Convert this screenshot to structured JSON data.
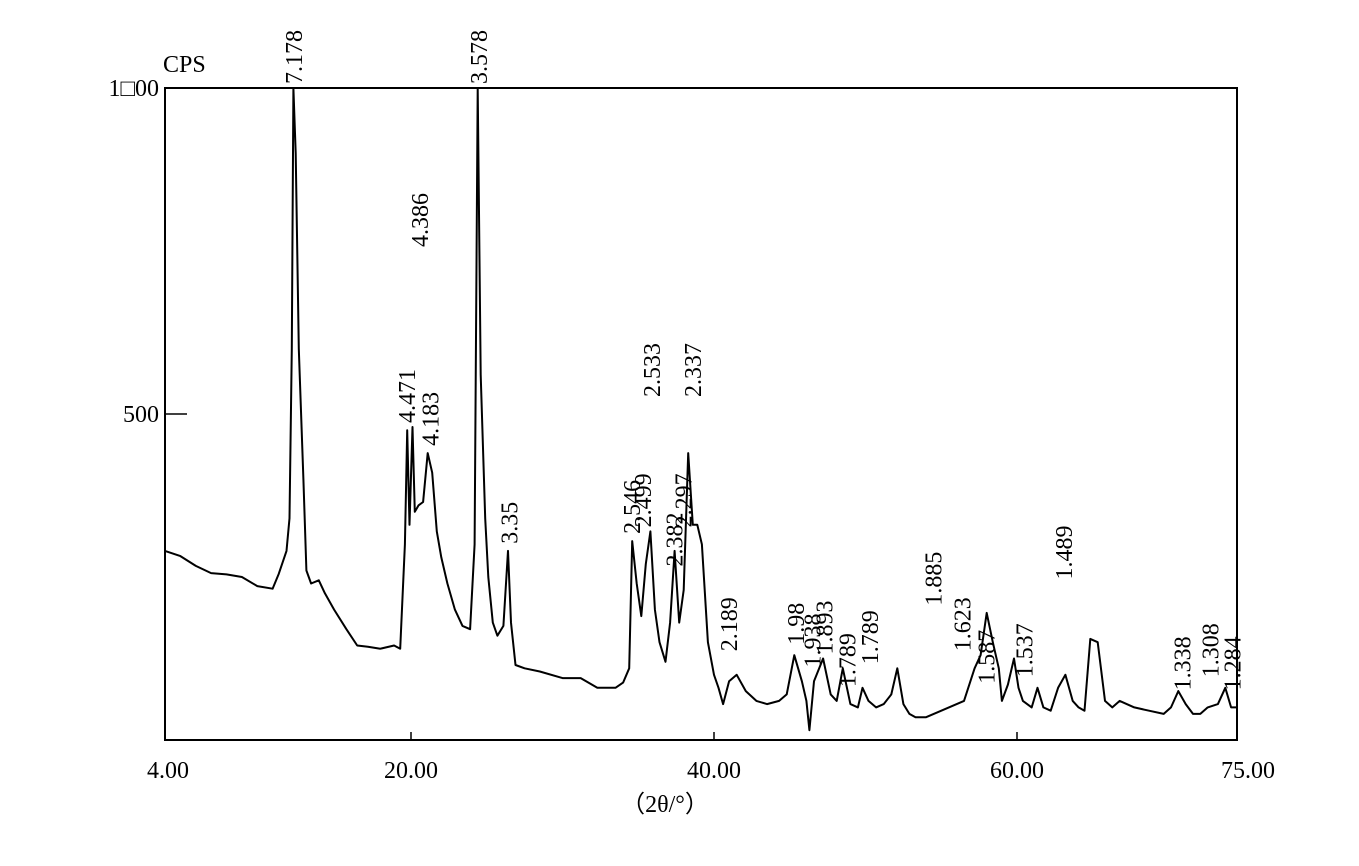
{
  "chart_data": {
    "type": "line",
    "title": "",
    "ylabel": "CPS",
    "xlabel": "（2θ/°）",
    "xlim": [
      4,
      75
    ],
    "ylim": [
      0,
      1000
    ],
    "x_ticks": [
      {
        "value": 4,
        "label": "4.00"
      },
      {
        "value": 20,
        "label": "20.00"
      },
      {
        "value": 40,
        "label": "40.00"
      },
      {
        "value": 60,
        "label": "60.00"
      },
      {
        "value": 75,
        "label": "75.00"
      }
    ],
    "y_ticks": [
      {
        "value": 500,
        "label": "500"
      },
      {
        "value": 1000,
        "label": "1□00"
      }
    ],
    "grid": false,
    "legend": "none",
    "line_color": "#000000",
    "series": [
      {
        "points": [
          [
            4.0,
            290
          ],
          [
            5.0,
            282
          ],
          [
            6.0,
            267
          ],
          [
            7.0,
            256
          ],
          [
            8.0,
            254
          ],
          [
            9.0,
            250
          ],
          [
            10.0,
            236
          ],
          [
            11.0,
            232
          ],
          [
            11.4,
            255
          ],
          [
            11.9,
            290
          ],
          [
            12.1,
            340
          ],
          [
            12.25,
            600
          ],
          [
            12.35,
            1000
          ],
          [
            12.5,
            900
          ],
          [
            12.7,
            600
          ],
          [
            13.0,
            400
          ],
          [
            13.2,
            260
          ],
          [
            13.5,
            240
          ],
          [
            14.0,
            245
          ],
          [
            14.4,
            225
          ],
          [
            15.0,
            200
          ],
          [
            15.8,
            170
          ],
          [
            16.5,
            145
          ],
          [
            17.2,
            143
          ],
          [
            18.0,
            140
          ],
          [
            18.9,
            145
          ],
          [
            19.3,
            140
          ],
          [
            19.6,
            300
          ],
          [
            19.75,
            475
          ],
          [
            19.9,
            330
          ],
          [
            20.1,
            480
          ],
          [
            20.25,
            350
          ],
          [
            20.5,
            360
          ],
          [
            20.8,
            365
          ],
          [
            21.1,
            440
          ],
          [
            21.4,
            410
          ],
          [
            21.7,
            320
          ],
          [
            22.0,
            280
          ],
          [
            22.4,
            240
          ],
          [
            22.9,
            200
          ],
          [
            23.4,
            175
          ],
          [
            23.9,
            170
          ],
          [
            24.2,
            300
          ],
          [
            24.4,
            1000
          ],
          [
            24.6,
            560
          ],
          [
            24.9,
            340
          ],
          [
            25.1,
            250
          ],
          [
            25.4,
            180
          ],
          [
            25.7,
            160
          ],
          [
            26.1,
            175
          ],
          [
            26.4,
            290
          ],
          [
            26.6,
            180
          ],
          [
            26.9,
            115
          ],
          [
            27.5,
            110
          ],
          [
            28.5,
            105
          ],
          [
            30.0,
            95
          ],
          [
            31.2,
            95
          ],
          [
            32.3,
            80
          ],
          [
            33.5,
            80
          ],
          [
            34.0,
            88
          ],
          [
            34.4,
            110
          ],
          [
            34.6,
            305
          ],
          [
            34.9,
            240
          ],
          [
            35.2,
            190
          ],
          [
            35.5,
            270
          ],
          [
            35.8,
            320
          ],
          [
            36.1,
            200
          ],
          [
            36.4,
            150
          ],
          [
            36.8,
            120
          ],
          [
            37.1,
            180
          ],
          [
            37.4,
            290
          ],
          [
            37.7,
            180
          ],
          [
            38.0,
            230
          ],
          [
            38.3,
            440
          ],
          [
            38.6,
            330
          ],
          [
            38.9,
            330
          ],
          [
            39.2,
            300
          ],
          [
            39.6,
            150
          ],
          [
            40.0,
            100
          ],
          [
            40.3,
            80
          ],
          [
            40.6,
            55
          ],
          [
            41.0,
            90
          ],
          [
            41.5,
            100
          ],
          [
            42.1,
            75
          ],
          [
            42.8,
            60
          ],
          [
            43.5,
            55
          ],
          [
            44.3,
            60
          ],
          [
            44.8,
            70
          ],
          [
            45.3,
            130
          ],
          [
            45.8,
            90
          ],
          [
            46.1,
            60
          ],
          [
            46.3,
            15
          ],
          [
            46.6,
            90
          ],
          [
            47.2,
            125
          ],
          [
            47.7,
            70
          ],
          [
            48.1,
            60
          ],
          [
            48.5,
            110
          ],
          [
            49.0,
            55
          ],
          [
            49.5,
            50
          ],
          [
            49.8,
            80
          ],
          [
            50.2,
            60
          ],
          [
            50.7,
            50
          ],
          [
            51.2,
            55
          ],
          [
            51.7,
            70
          ],
          [
            52.1,
            110
          ],
          [
            52.5,
            55
          ],
          [
            52.9,
            40
          ],
          [
            53.3,
            35
          ],
          [
            54.0,
            35
          ],
          [
            55.0,
            45
          ],
          [
            56.5,
            60
          ],
          [
            57.2,
            110
          ],
          [
            57.6,
            130
          ],
          [
            58.0,
            195
          ],
          [
            58.4,
            150
          ],
          [
            58.8,
            110
          ],
          [
            59.0,
            60
          ],
          [
            59.4,
            85
          ],
          [
            59.8,
            125
          ],
          [
            60.1,
            80
          ],
          [
            60.4,
            60
          ],
          [
            61.0,
            50
          ],
          [
            61.4,
            80
          ],
          [
            61.8,
            50
          ],
          [
            62.3,
            45
          ],
          [
            62.8,
            80
          ],
          [
            63.3,
            100
          ],
          [
            63.8,
            60
          ],
          [
            64.2,
            50
          ],
          [
            64.6,
            45
          ],
          [
            65.0,
            155
          ],
          [
            65.5,
            150
          ],
          [
            66.0,
            60
          ],
          [
            66.5,
            50
          ],
          [
            67.0,
            60
          ],
          [
            68.0,
            50
          ],
          [
            69.0,
            45
          ],
          [
            70.0,
            40
          ],
          [
            70.5,
            50
          ],
          [
            71.0,
            75
          ],
          [
            71.5,
            55
          ],
          [
            72.0,
            40
          ],
          [
            72.5,
            40
          ],
          [
            73.0,
            50
          ],
          [
            73.7,
            55
          ],
          [
            74.2,
            80
          ],
          [
            74.6,
            50
          ],
          [
            75.0,
            50
          ]
        ]
      }
    ],
    "peak_labels": [
      {
        "text": "7.178",
        "x": 12.4,
        "y": 1000
      },
      {
        "text": "4.386",
        "x": 20.6,
        "y": 750
      },
      {
        "text": "4.471",
        "x": 19.75,
        "y": 480
      },
      {
        "text": "4.183",
        "x": 21.3,
        "y": 445
      },
      {
        "text": "3.578",
        "x": 24.5,
        "y": 1000
      },
      {
        "text": "3.35",
        "x": 26.5,
        "y": 295
      },
      {
        "text": "2.546",
        "x": 34.6,
        "y": 310
      },
      {
        "text": "2.533",
        "x": 35.9,
        "y": 520
      },
      {
        "text": "2.499",
        "x": 35.3,
        "y": 320
      },
      {
        "text": "2.382",
        "x": 37.4,
        "y": 260
      },
      {
        "text": "2.337",
        "x": 38.6,
        "y": 520
      },
      {
        "text": "2.297",
        "x": 38.0,
        "y": 320
      },
      {
        "text": "2.189",
        "x": 41.0,
        "y": 130
      },
      {
        "text": "1.98",
        "x": 45.4,
        "y": 140
      },
      {
        "text": "1.938",
        "x": 46.5,
        "y": 105
      },
      {
        "text": "1.893",
        "x": 47.3,
        "y": 125
      },
      {
        "text": "1.789",
        "x": 48.8,
        "y": 75
      },
      {
        "text": "1.789",
        "x": 50.3,
        "y": 110
      },
      {
        "text": "1.885",
        "x": 54.5,
        "y": 200
      },
      {
        "text": "1.623",
        "x": 56.4,
        "y": 130
      },
      {
        "text": "1.587",
        "x": 58.0,
        "y": 80
      },
      {
        "text": "1.537",
        "x": 60.5,
        "y": 90
      },
      {
        "text": "1.489",
        "x": 63.2,
        "y": 240
      },
      {
        "text": "1.338",
        "x": 71.3,
        "y": 70
      },
      {
        "text": "1.308",
        "x": 73.2,
        "y": 90
      },
      {
        "text": "1.284",
        "x": 74.7,
        "y": 70
      }
    ]
  }
}
